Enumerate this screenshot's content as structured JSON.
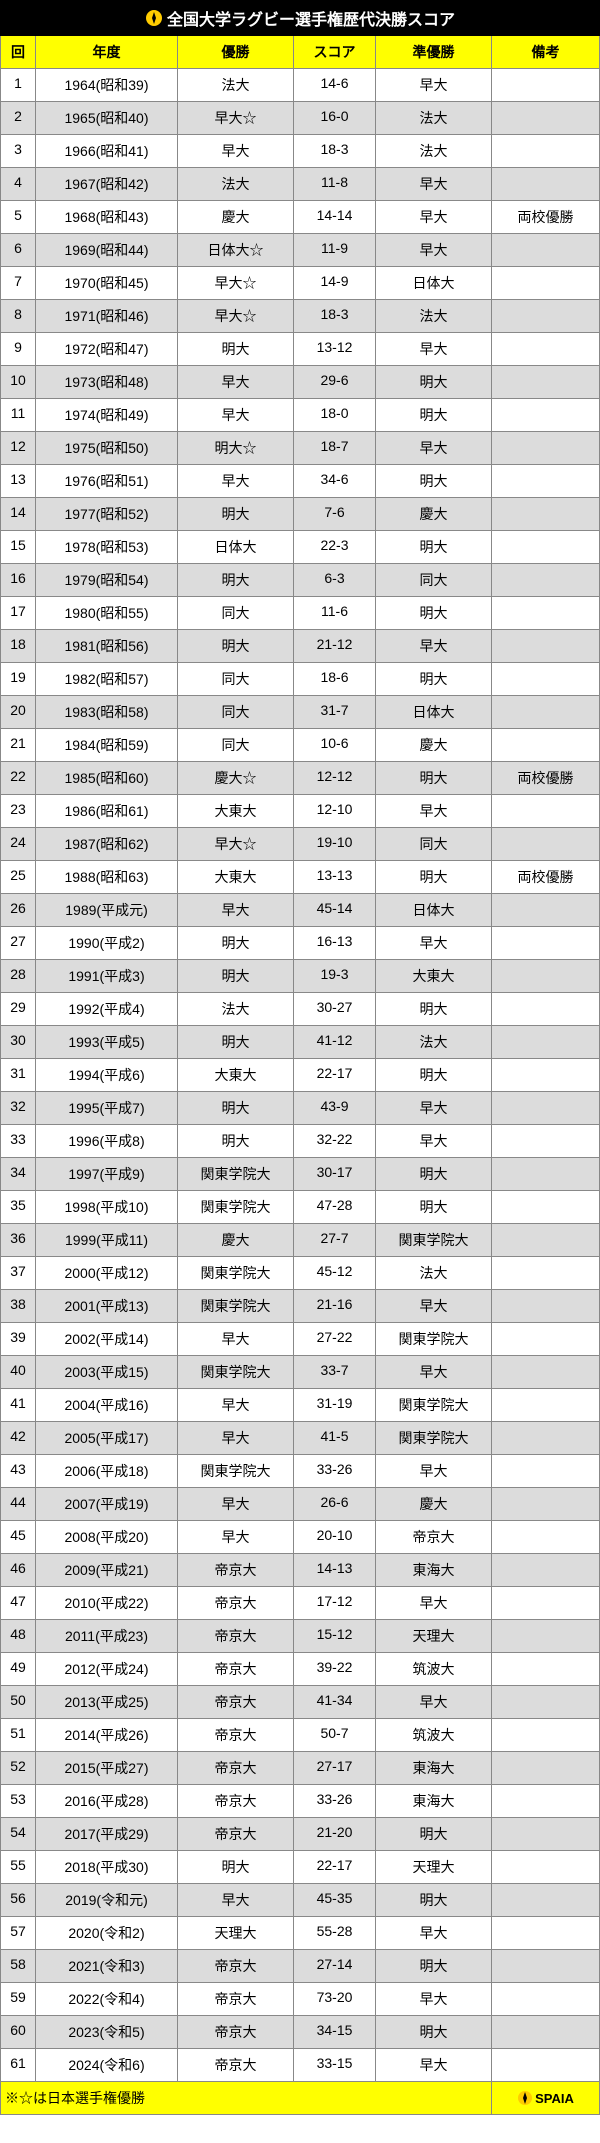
{
  "title": "全国大学ラグビー選手権歴代決勝スコア",
  "headers": {
    "num": "回",
    "year": "年度",
    "winner": "優勝",
    "score": "スコア",
    "runner": "準優勝",
    "note": "備考"
  },
  "footnote": "※☆は日本選手権優勝",
  "logo_text": "SPAIA",
  "colors": {
    "title_bg": "#000000",
    "title_text": "#ffffff",
    "header_bg": "#ffff00",
    "row_alt_bg": "#dcdcdc",
    "row_bg": "#ffffff",
    "border": "#888888",
    "logo_icon": "#ffcc00"
  },
  "rows": [
    {
      "n": "1",
      "year": "1964(昭和39)",
      "winner": "法大",
      "score": "14-6",
      "runner": "早大",
      "note": ""
    },
    {
      "n": "2",
      "year": "1965(昭和40)",
      "winner": "早大☆",
      "score": "16-0",
      "runner": "法大",
      "note": ""
    },
    {
      "n": "3",
      "year": "1966(昭和41)",
      "winner": "早大",
      "score": "18-3",
      "runner": "法大",
      "note": ""
    },
    {
      "n": "4",
      "year": "1967(昭和42)",
      "winner": "法大",
      "score": "11-8",
      "runner": "早大",
      "note": ""
    },
    {
      "n": "5",
      "year": "1968(昭和43)",
      "winner": "慶大",
      "score": "14-14",
      "runner": "早大",
      "note": "両校優勝"
    },
    {
      "n": "6",
      "year": "1969(昭和44)",
      "winner": "日体大☆",
      "score": "11-9",
      "runner": "早大",
      "note": ""
    },
    {
      "n": "7",
      "year": "1970(昭和45)",
      "winner": "早大☆",
      "score": "14-9",
      "runner": "日体大",
      "note": ""
    },
    {
      "n": "8",
      "year": "1971(昭和46)",
      "winner": "早大☆",
      "score": "18-3",
      "runner": "法大",
      "note": ""
    },
    {
      "n": "9",
      "year": "1972(昭和47)",
      "winner": "明大",
      "score": "13-12",
      "runner": "早大",
      "note": ""
    },
    {
      "n": "10",
      "year": "1973(昭和48)",
      "winner": "早大",
      "score": "29-6",
      "runner": "明大",
      "note": ""
    },
    {
      "n": "11",
      "year": "1974(昭和49)",
      "winner": "早大",
      "score": "18-0",
      "runner": "明大",
      "note": ""
    },
    {
      "n": "12",
      "year": "1975(昭和50)",
      "winner": "明大☆",
      "score": "18-7",
      "runner": "早大",
      "note": ""
    },
    {
      "n": "13",
      "year": "1976(昭和51)",
      "winner": "早大",
      "score": "34-6",
      "runner": "明大",
      "note": ""
    },
    {
      "n": "14",
      "year": "1977(昭和52)",
      "winner": "明大",
      "score": "7-6",
      "runner": "慶大",
      "note": ""
    },
    {
      "n": "15",
      "year": "1978(昭和53)",
      "winner": "日体大",
      "score": "22-3",
      "runner": "明大",
      "note": ""
    },
    {
      "n": "16",
      "year": "1979(昭和54)",
      "winner": "明大",
      "score": "6-3",
      "runner": "同大",
      "note": ""
    },
    {
      "n": "17",
      "year": "1980(昭和55)",
      "winner": "同大",
      "score": "11-6",
      "runner": "明大",
      "note": ""
    },
    {
      "n": "18",
      "year": "1981(昭和56)",
      "winner": "明大",
      "score": "21-12",
      "runner": "早大",
      "note": ""
    },
    {
      "n": "19",
      "year": "1982(昭和57)",
      "winner": "同大",
      "score": "18-6",
      "runner": "明大",
      "note": ""
    },
    {
      "n": "20",
      "year": "1983(昭和58)",
      "winner": "同大",
      "score": "31-7",
      "runner": "日体大",
      "note": ""
    },
    {
      "n": "21",
      "year": "1984(昭和59)",
      "winner": "同大",
      "score": "10-6",
      "runner": "慶大",
      "note": ""
    },
    {
      "n": "22",
      "year": "1985(昭和60)",
      "winner": "慶大☆",
      "score": "12-12",
      "runner": "明大",
      "note": "両校優勝"
    },
    {
      "n": "23",
      "year": "1986(昭和61)",
      "winner": "大東大",
      "score": "12-10",
      "runner": "早大",
      "note": ""
    },
    {
      "n": "24",
      "year": "1987(昭和62)",
      "winner": "早大☆",
      "score": "19-10",
      "runner": "同大",
      "note": ""
    },
    {
      "n": "25",
      "year": "1988(昭和63)",
      "winner": "大東大",
      "score": "13-13",
      "runner": "明大",
      "note": "両校優勝"
    },
    {
      "n": "26",
      "year": "1989(平成元)",
      "winner": "早大",
      "score": "45-14",
      "runner": "日体大",
      "note": ""
    },
    {
      "n": "27",
      "year": "1990(平成2)",
      "winner": "明大",
      "score": "16-13",
      "runner": "早大",
      "note": ""
    },
    {
      "n": "28",
      "year": "1991(平成3)",
      "winner": "明大",
      "score": "19-3",
      "runner": "大東大",
      "note": ""
    },
    {
      "n": "29",
      "year": "1992(平成4)",
      "winner": "法大",
      "score": "30-27",
      "runner": "明大",
      "note": ""
    },
    {
      "n": "30",
      "year": "1993(平成5)",
      "winner": "明大",
      "score": "41-12",
      "runner": "法大",
      "note": ""
    },
    {
      "n": "31",
      "year": "1994(平成6)",
      "winner": "大東大",
      "score": "22-17",
      "runner": "明大",
      "note": ""
    },
    {
      "n": "32",
      "year": "1995(平成7)",
      "winner": "明大",
      "score": "43-9",
      "runner": "早大",
      "note": ""
    },
    {
      "n": "33",
      "year": "1996(平成8)",
      "winner": "明大",
      "score": "32-22",
      "runner": "早大",
      "note": ""
    },
    {
      "n": "34",
      "year": "1997(平成9)",
      "winner": "関東学院大",
      "score": "30-17",
      "runner": "明大",
      "note": ""
    },
    {
      "n": "35",
      "year": "1998(平成10)",
      "winner": "関東学院大",
      "score": "47-28",
      "runner": "明大",
      "note": ""
    },
    {
      "n": "36",
      "year": "1999(平成11)",
      "winner": "慶大",
      "score": "27-7",
      "runner": "関東学院大",
      "note": ""
    },
    {
      "n": "37",
      "year": "2000(平成12)",
      "winner": "関東学院大",
      "score": "45-12",
      "runner": "法大",
      "note": ""
    },
    {
      "n": "38",
      "year": "2001(平成13)",
      "winner": "関東学院大",
      "score": "21-16",
      "runner": "早大",
      "note": ""
    },
    {
      "n": "39",
      "year": "2002(平成14)",
      "winner": "早大",
      "score": "27-22",
      "runner": "関東学院大",
      "note": ""
    },
    {
      "n": "40",
      "year": "2003(平成15)",
      "winner": "関東学院大",
      "score": "33-7",
      "runner": "早大",
      "note": ""
    },
    {
      "n": "41",
      "year": "2004(平成16)",
      "winner": "早大",
      "score": "31-19",
      "runner": "関東学院大",
      "note": ""
    },
    {
      "n": "42",
      "year": "2005(平成17)",
      "winner": "早大",
      "score": "41-5",
      "runner": "関東学院大",
      "note": ""
    },
    {
      "n": "43",
      "year": "2006(平成18)",
      "winner": "関東学院大",
      "score": "33-26",
      "runner": "早大",
      "note": ""
    },
    {
      "n": "44",
      "year": "2007(平成19)",
      "winner": "早大",
      "score": "26-6",
      "runner": "慶大",
      "note": ""
    },
    {
      "n": "45",
      "year": "2008(平成20)",
      "winner": "早大",
      "score": "20-10",
      "runner": "帝京大",
      "note": ""
    },
    {
      "n": "46",
      "year": "2009(平成21)",
      "winner": "帝京大",
      "score": "14-13",
      "runner": "東海大",
      "note": ""
    },
    {
      "n": "47",
      "year": "2010(平成22)",
      "winner": "帝京大",
      "score": "17-12",
      "runner": "早大",
      "note": ""
    },
    {
      "n": "48",
      "year": "2011(平成23)",
      "winner": "帝京大",
      "score": "15-12",
      "runner": "天理大",
      "note": ""
    },
    {
      "n": "49",
      "year": "2012(平成24)",
      "winner": "帝京大",
      "score": "39-22",
      "runner": "筑波大",
      "note": ""
    },
    {
      "n": "50",
      "year": "2013(平成25)",
      "winner": "帝京大",
      "score": "41-34",
      "runner": "早大",
      "note": ""
    },
    {
      "n": "51",
      "year": "2014(平成26)",
      "winner": "帝京大",
      "score": "50-7",
      "runner": "筑波大",
      "note": ""
    },
    {
      "n": "52",
      "year": "2015(平成27)",
      "winner": "帝京大",
      "score": "27-17",
      "runner": "東海大",
      "note": ""
    },
    {
      "n": "53",
      "year": "2016(平成28)",
      "winner": "帝京大",
      "score": "33-26",
      "runner": "東海大",
      "note": ""
    },
    {
      "n": "54",
      "year": "2017(平成29)",
      "winner": "帝京大",
      "score": "21-20",
      "runner": "明大",
      "note": ""
    },
    {
      "n": "55",
      "year": "2018(平成30)",
      "winner": "明大",
      "score": "22-17",
      "runner": "天理大",
      "note": ""
    },
    {
      "n": "56",
      "year": "2019(令和元)",
      "winner": "早大",
      "score": "45-35",
      "runner": "明大",
      "note": ""
    },
    {
      "n": "57",
      "year": "2020(令和2)",
      "winner": "天理大",
      "score": "55-28",
      "runner": "早大",
      "note": ""
    },
    {
      "n": "58",
      "year": "2021(令和3)",
      "winner": "帝京大",
      "score": "27-14",
      "runner": "明大",
      "note": ""
    },
    {
      "n": "59",
      "year": "2022(令和4)",
      "winner": "帝京大",
      "score": "73-20",
      "runner": "早大",
      "note": ""
    },
    {
      "n": "60",
      "year": "2023(令和5)",
      "winner": "帝京大",
      "score": "34-15",
      "runner": "明大",
      "note": ""
    },
    {
      "n": "61",
      "year": "2024(令和6)",
      "winner": "帝京大",
      "score": "33-15",
      "runner": "早大",
      "note": ""
    }
  ]
}
